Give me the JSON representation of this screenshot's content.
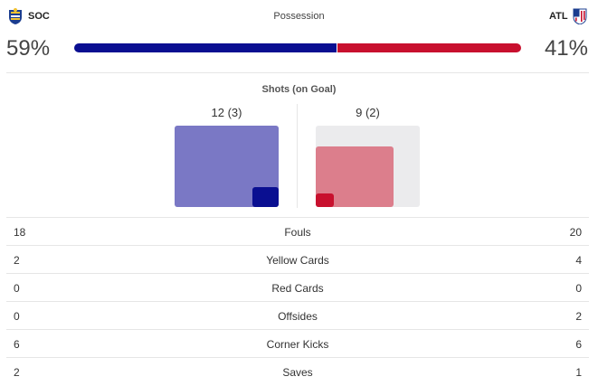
{
  "possession": {
    "title": "Possession",
    "home": {
      "abbr": "SOC",
      "value": "59%",
      "fraction": 0.59,
      "color": "#0a0f91"
    },
    "away": {
      "abbr": "ATL",
      "value": "41%",
      "fraction": 0.41,
      "color": "#c8102e"
    }
  },
  "shots": {
    "title": "Shots (on Goal)",
    "home": {
      "label": "12 (3)",
      "total": 12,
      "on_goal": 3
    },
    "away": {
      "label": "9 (2)",
      "total": 9,
      "on_goal": 2
    }
  },
  "stats": [
    {
      "label": "Fouls",
      "home": "18",
      "away": "20"
    },
    {
      "label": "Yellow Cards",
      "home": "2",
      "away": "4"
    },
    {
      "label": "Red Cards",
      "home": "0",
      "away": "0"
    },
    {
      "label": "Offsides",
      "home": "0",
      "away": "2"
    },
    {
      "label": "Corner Kicks",
      "home": "6",
      "away": "6"
    },
    {
      "label": "Saves",
      "home": "2",
      "away": "1"
    }
  ],
  "icons": {
    "home_crest": "real-sociedad-crest-icon",
    "away_crest": "atletico-madrid-crest-icon"
  }
}
